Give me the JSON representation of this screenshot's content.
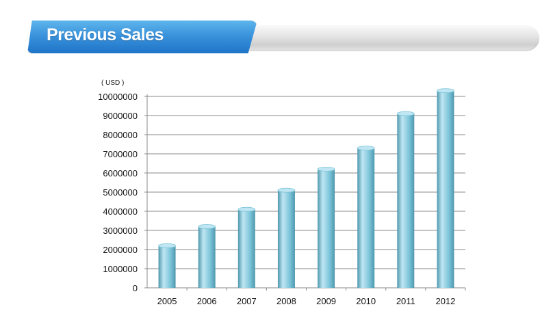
{
  "header": {
    "title": "Previous Sales"
  },
  "chart_data": {
    "type": "bar",
    "unit_label": "( USD )",
    "categories": [
      "2005",
      "2006",
      "2007",
      "2008",
      "2009",
      "2010",
      "2011",
      "2012"
    ],
    "values": [
      2200000,
      3200000,
      4100000,
      5100000,
      6200000,
      7300000,
      9100000,
      10300000
    ],
    "yticks": [
      "0",
      "1000000",
      "2000000",
      "3000000",
      "4000000",
      "5000000",
      "6000000",
      "7000000",
      "8000000",
      "9000000",
      "10000000"
    ],
    "ylim": [
      0,
      10000000
    ],
    "grid": true,
    "legend": "none",
    "bar_color": "#7cc4d9",
    "bar_dark": "#4e98ad",
    "bar_light": "#bfe6f2"
  }
}
